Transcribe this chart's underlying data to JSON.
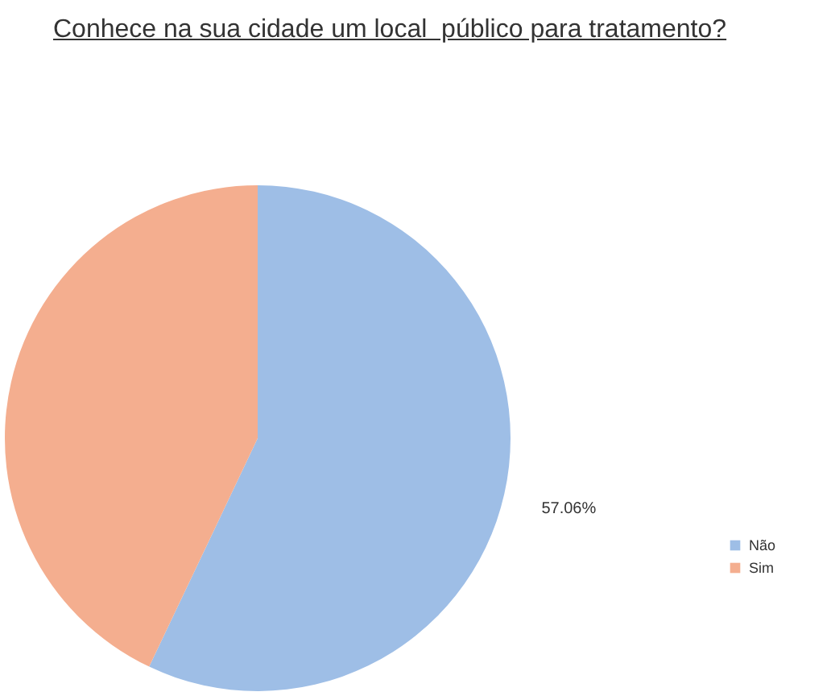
{
  "chart_data": {
    "type": "pie",
    "title": "Conhece na sua cidade um local  público para tratamento?",
    "categories": [
      "Não",
      "Sim"
    ],
    "values": [
      57.06,
      42.94
    ],
    "colors": [
      "#9ebee6",
      "#f4ae8f"
    ],
    "value_labels": [
      "57.06%",
      null
    ],
    "legend": "right"
  }
}
